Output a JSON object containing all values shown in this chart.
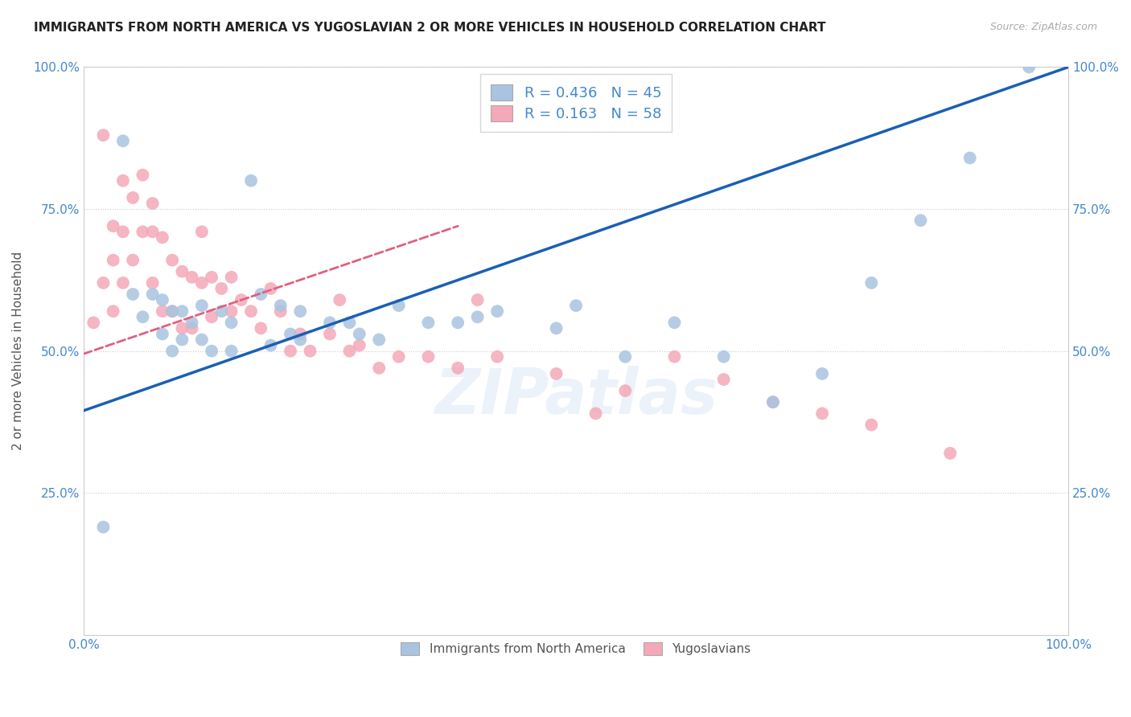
{
  "title": "IMMIGRANTS FROM NORTH AMERICA VS YUGOSLAVIAN 2 OR MORE VEHICLES IN HOUSEHOLD CORRELATION CHART",
  "source": "Source: ZipAtlas.com",
  "ylabel": "2 or more Vehicles in Household",
  "xlim": [
    0.0,
    1.0
  ],
  "ylim": [
    0.0,
    1.0
  ],
  "xtick_labels": [
    "0.0%",
    "100.0%"
  ],
  "ytick_labels": [
    "25.0%",
    "50.0%",
    "75.0%",
    "100.0%"
  ],
  "ytick_positions": [
    0.25,
    0.5,
    0.75,
    1.0
  ],
  "legend_label1": "Immigrants from North America",
  "legend_label2": "Yugoslavians",
  "color_blue": "#a8c4e0",
  "color_pink": "#f4a8b8",
  "line_blue": "#1a5fb4",
  "line_pink": "#e06080",
  "title_color": "#222222",
  "source_color": "#aaaaaa",
  "axis_color": "#4488cc",
  "R1": 0.436,
  "N1": 45,
  "R2": 0.163,
  "N2": 58,
  "blue_line_x": [
    0.0,
    1.0
  ],
  "blue_line_y": [
    0.395,
    1.0
  ],
  "pink_line_x": [
    0.0,
    0.38
  ],
  "pink_line_y": [
    0.495,
    0.72
  ],
  "blue_points_x": [
    0.02,
    0.04,
    0.05,
    0.06,
    0.07,
    0.08,
    0.08,
    0.09,
    0.09,
    0.1,
    0.1,
    0.11,
    0.12,
    0.12,
    0.13,
    0.14,
    0.15,
    0.15,
    0.17,
    0.18,
    0.19,
    0.2,
    0.21,
    0.22,
    0.22,
    0.25,
    0.27,
    0.28,
    0.3,
    0.32,
    0.35,
    0.38,
    0.4,
    0.42,
    0.48,
    0.5,
    0.55,
    0.6,
    0.65,
    0.7,
    0.75,
    0.8,
    0.85,
    0.9,
    0.96
  ],
  "blue_points_y": [
    0.19,
    0.87,
    0.6,
    0.56,
    0.6,
    0.59,
    0.53,
    0.57,
    0.5,
    0.52,
    0.57,
    0.55,
    0.58,
    0.52,
    0.5,
    0.57,
    0.5,
    0.55,
    0.8,
    0.6,
    0.51,
    0.58,
    0.53,
    0.57,
    0.52,
    0.55,
    0.55,
    0.53,
    0.52,
    0.58,
    0.55,
    0.55,
    0.56,
    0.57,
    0.54,
    0.58,
    0.49,
    0.55,
    0.49,
    0.41,
    0.46,
    0.62,
    0.73,
    0.84,
    1.0
  ],
  "pink_points_x": [
    0.01,
    0.02,
    0.02,
    0.03,
    0.03,
    0.03,
    0.04,
    0.04,
    0.04,
    0.05,
    0.05,
    0.06,
    0.06,
    0.07,
    0.07,
    0.07,
    0.08,
    0.08,
    0.09,
    0.09,
    0.1,
    0.1,
    0.11,
    0.11,
    0.12,
    0.12,
    0.13,
    0.13,
    0.14,
    0.15,
    0.15,
    0.16,
    0.17,
    0.18,
    0.19,
    0.2,
    0.21,
    0.22,
    0.23,
    0.25,
    0.26,
    0.27,
    0.28,
    0.3,
    0.32,
    0.35,
    0.38,
    0.4,
    0.42,
    0.48,
    0.52,
    0.55,
    0.6,
    0.65,
    0.7,
    0.75,
    0.8,
    0.88
  ],
  "pink_points_y": [
    0.55,
    0.88,
    0.62,
    0.72,
    0.66,
    0.57,
    0.8,
    0.71,
    0.62,
    0.77,
    0.66,
    0.81,
    0.71,
    0.76,
    0.71,
    0.62,
    0.7,
    0.57,
    0.66,
    0.57,
    0.64,
    0.54,
    0.63,
    0.54,
    0.71,
    0.62,
    0.63,
    0.56,
    0.61,
    0.63,
    0.57,
    0.59,
    0.57,
    0.54,
    0.61,
    0.57,
    0.5,
    0.53,
    0.5,
    0.53,
    0.59,
    0.5,
    0.51,
    0.47,
    0.49,
    0.49,
    0.47,
    0.59,
    0.49,
    0.46,
    0.39,
    0.43,
    0.49,
    0.45,
    0.41,
    0.39,
    0.37,
    0.32
  ]
}
